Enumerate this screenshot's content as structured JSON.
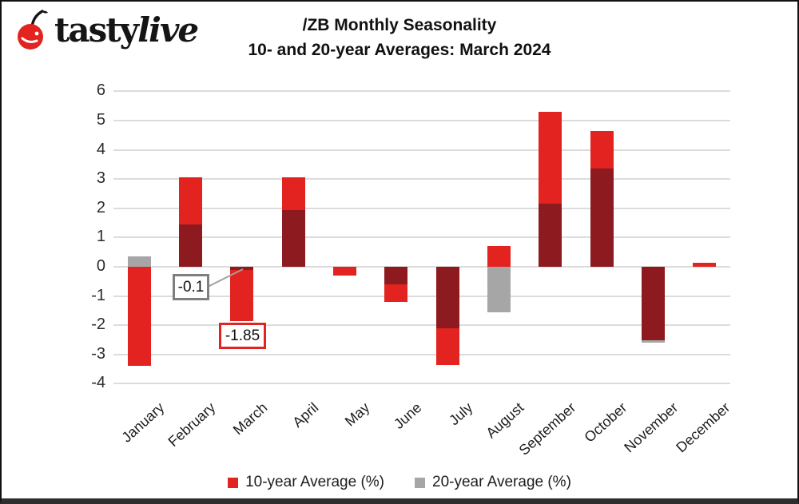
{
  "header": {
    "logo_word_regular": "tasty",
    "logo_word_italic": "live",
    "title_line1": "/ZB Monthly Seasonality",
    "title_line2": "10- and 20-year Averages: March 2024"
  },
  "colors": {
    "red": "#e2231f",
    "dark_red": "#8c1a1e",
    "gray": "#a6a6a6",
    "gridline": "#dcdcdc",
    "callout_gray_border": "#7f7f7f"
  },
  "y_ticks": [
    "6",
    "5",
    "4",
    "3",
    "2",
    "1",
    "0",
    "-1",
    "-2",
    "-3",
    "-4"
  ],
  "chart_data": {
    "type": "bar",
    "title": "/ZB Monthly Seasonality",
    "subtitle": "10- and 20-year Averages: March 2024",
    "categories": [
      "January",
      "February",
      "March",
      "April",
      "May",
      "June",
      "July",
      "August",
      "September",
      "October",
      "November",
      "December"
    ],
    "series": [
      {
        "name": "10-year Average (%)",
        "color": "#e2231f",
        "values": [
          -3.4,
          3.05,
          -1.85,
          3.05,
          -0.3,
          -1.2,
          -3.35,
          0.7,
          5.3,
          4.65,
          -2.5,
          0.15
        ]
      },
      {
        "name": "20-year Average (%)",
        "color": "#a6a6a6",
        "values": [
          0.35,
          1.45,
          -0.1,
          1.95,
          0,
          -0.6,
          -2.1,
          -1.55,
          2.15,
          3.35,
          -2.6,
          0
        ]
      }
    ],
    "ylim": [
      -4,
      6
    ],
    "ytick_step": 1,
    "grid": true,
    "legend_position": "bottom",
    "bar_style": "overlapped; where series overlap the fill renders dark red",
    "annotations": [
      {
        "text": "-0.1",
        "target": "March 20-year Average",
        "border": "gray"
      },
      {
        "text": "-1.85",
        "target": "March 10-year Average",
        "border": "red"
      }
    ]
  },
  "legend": {
    "item1": "10-year Average (%)",
    "item2": "20-year Average (%)"
  }
}
